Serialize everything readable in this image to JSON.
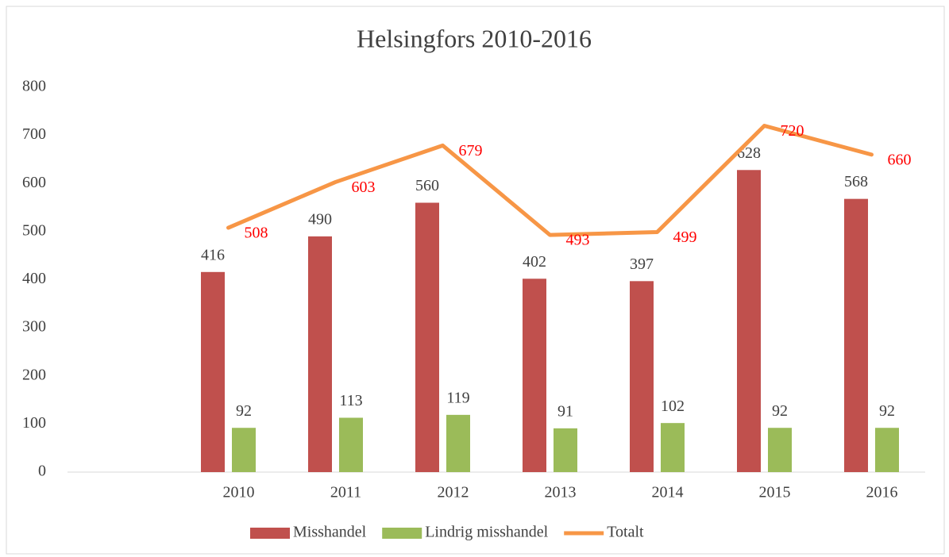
{
  "chart_data": {
    "type": "bar+line",
    "title": "Helsingfors 2010-2016",
    "categories": [
      null,
      "2010",
      "2011",
      "2012",
      "2013",
      "2014",
      "2015",
      "2016"
    ],
    "series": [
      {
        "name": "Misshandel",
        "type": "bar",
        "color": "#c0504d",
        "values": [
          null,
          416,
          490,
          560,
          402,
          397,
          628,
          568
        ]
      },
      {
        "name": "Lindrig misshandel",
        "type": "bar",
        "color": "#9bbb59",
        "values": [
          null,
          92,
          113,
          119,
          91,
          102,
          92,
          92
        ]
      },
      {
        "name": "Totalt",
        "type": "line",
        "color": "#f79646",
        "label_color": "#ff0000",
        "values": [
          null,
          508,
          603,
          679,
          493,
          499,
          720,
          660
        ]
      }
    ],
    "ylim": [
      0,
      800
    ],
    "yticks": [
      0,
      100,
      200,
      300,
      400,
      500,
      600,
      700,
      800
    ],
    "grid": false,
    "legend": "bottom"
  }
}
